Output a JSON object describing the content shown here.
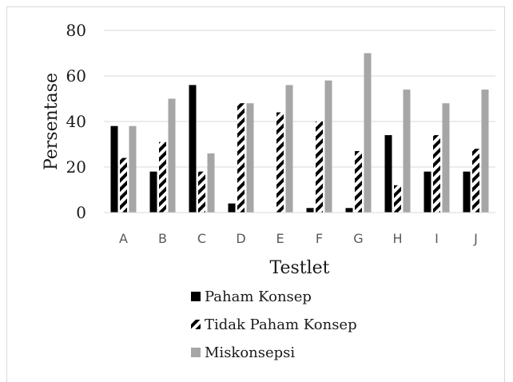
{
  "chart_data": {
    "type": "bar",
    "title": "",
    "xlabel": "Testlet",
    "ylabel": "Persentase",
    "ylim": [
      0,
      80
    ],
    "yticks": [
      0,
      20,
      40,
      60,
      80
    ],
    "grid": true,
    "legend_position": "bottom",
    "categories": [
      "A",
      "B",
      "C",
      "D",
      "E",
      "F",
      "G",
      "H",
      "I",
      "J"
    ],
    "series": [
      {
        "name": "Paham Konsep",
        "color": "#000000",
        "pattern": "solid",
        "values": [
          38,
          18,
          56,
          4,
          0,
          2,
          2,
          34,
          18,
          18
        ]
      },
      {
        "name": "Tidak Paham Konsep",
        "color": "#000000",
        "pattern": "diagonal-stripes",
        "values": [
          24,
          31,
          18,
          48,
          44,
          40,
          27,
          12,
          34,
          28
        ]
      },
      {
        "name": "Miskonsepsi",
        "color": "#a6a6a6",
        "pattern": "solid",
        "values": [
          38,
          50,
          26,
          48,
          56,
          58,
          70,
          54,
          48,
          54
        ]
      }
    ]
  }
}
